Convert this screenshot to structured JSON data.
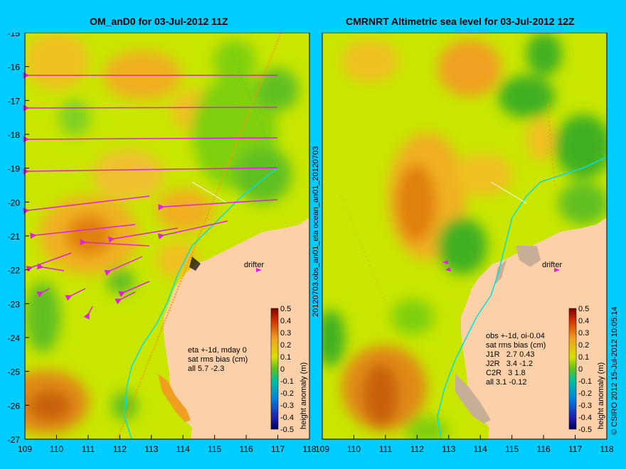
{
  "left_panel": {
    "title": "OM_anD0 for 03-Jul-2012 11Z",
    "stats": [
      "eta +-1d, mday 0",
      "sat rms bias (cm)",
      "all 5.7 -2.3"
    ],
    "drifter_label": "drifter"
  },
  "right_panel": {
    "title": "CMRNRT Altimetric sea level  for 03-Jul-2012 12Z",
    "stats": [
      "obs +-1d, oi-0.04",
      "sat rms bias (cm)",
      "J1R   2.7 0.43",
      "J2R   3.4 -1.2",
      "C2R   3 1.8",
      "all 3.1 -0.12"
    ],
    "drifter_label": "drifter"
  },
  "side_label": "20120703.obs_an01_eta      ocean_an01_20120703",
  "credit": "© CSIRO 2012   15-Jul-2012 10:05:14",
  "colorbar_label": "height anomaly (m)",
  "colorbar_ticks": [
    "0.5",
    "0.4",
    "0.3",
    "0.2",
    "0.1",
    "0",
    "-0.1",
    "-0.2",
    "-0.3",
    "-0.4",
    "-0.5"
  ],
  "lat_ticks": [
    "-15",
    "-16",
    "-17",
    "-18",
    "-19",
    "-20",
    "-21",
    "-22",
    "-23",
    "-24",
    "-25",
    "-26",
    "-27"
  ],
  "lon_ticks": [
    "109",
    "110",
    "111",
    "112",
    "113",
    "114",
    "115",
    "116",
    "117",
    "118"
  ],
  "colors": {
    "background": "#00ccff",
    "land": "#fcd0a8",
    "arrows": "#e020e0",
    "track": "#00e0e0"
  }
}
